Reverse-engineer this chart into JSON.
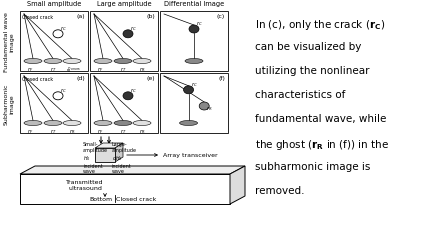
{
  "fig_width": 4.4,
  "fig_height": 2.32,
  "dpi": 100,
  "bg_color": "#ffffff",
  "col_headers": [
    "Small amplitude",
    "Large amplitude",
    "Differential Image"
  ],
  "row_headers": [
    "Fundamental wave\nimage",
    "Subharmonic\nimage"
  ],
  "panel_labels": [
    "(a)",
    "(b)",
    "(c)",
    "(d)",
    "(e)",
    "(f)"
  ],
  "gray_light": "#cccccc",
  "gray_dark": "#555555",
  "gray_med": "#999999"
}
